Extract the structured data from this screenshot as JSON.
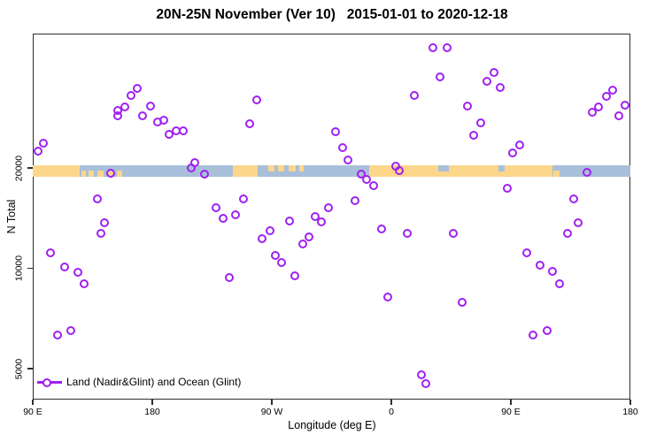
{
  "colors": {
    "point_purple": "#a020f0",
    "land_tan": "#fbd68b",
    "ocean_blue": "#a9bfd9",
    "axis_black": "#2e2e2e"
  },
  "chart_data": {
    "type": "scatter",
    "title": "20N-25N November (Ver 10)   2015-01-01 to 2020-12-18",
    "xlabel": "Longitude (deg E)",
    "ylabel": "N Total",
    "legend_label": "Land (Nadir&Glint) and Ocean (Glint)",
    "legend_position": "bottom-left inside plot",
    "grid": false,
    "x_axis": {
      "note": "Axis spans 450 deg of longitude wrapping eastward: left edge 90E -> 180 -> 90W -> 0 -> 90E -> 180 at right edge. Point x values below are degrees east of the left edge (0..450).",
      "tick_degs": [
        0,
        90,
        180,
        270,
        360,
        450
      ],
      "tick_labels": [
        "90 E",
        "180",
        "90 W",
        "0",
        "90 E",
        "180"
      ]
    },
    "y_axis": {
      "scale": "log2",
      "tick_values": [
        5000,
        10000,
        20000
      ],
      "tick_labels": [
        "5000",
        "10000",
        "20000"
      ],
      "ylim_approx": [
        4200,
        50000
      ]
    },
    "map_band": {
      "note": "Horizontal world-map strip of the 20N-25N latitude zone drawn across the plot at N Total = 20000; tan = land, blue = ocean. Segments in axis degrees (0..450).",
      "at_value": 20000,
      "segments": [
        {
          "from": 0,
          "to": 35.3,
          "type": "land",
          "part": "full"
        },
        {
          "from": 36.7,
          "to": 40,
          "type": "land",
          "part": "bottom"
        },
        {
          "from": 42,
          "to": 46,
          "type": "land",
          "part": "bottom"
        },
        {
          "from": 48.7,
          "to": 53.3,
          "type": "land",
          "part": "bottom"
        },
        {
          "from": 56.7,
          "to": 60.7,
          "type": "land",
          "part": "bottom"
        },
        {
          "from": 63.3,
          "to": 67.3,
          "type": "land",
          "part": "bottom"
        },
        {
          "from": 150.7,
          "to": 169.3,
          "type": "land",
          "part": "full"
        },
        {
          "from": 177.3,
          "to": 182,
          "type": "land",
          "part": "top"
        },
        {
          "from": 184.7,
          "to": 189.3,
          "type": "land",
          "part": "top"
        },
        {
          "from": 192.7,
          "to": 198,
          "type": "land",
          "part": "top"
        },
        {
          "from": 200.7,
          "to": 204,
          "type": "land",
          "part": "top"
        },
        {
          "from": 253.3,
          "to": 391.3,
          "type": "land",
          "part": "full"
        },
        {
          "from": 305.3,
          "to": 313.3,
          "type": "ocean",
          "part": "top"
        },
        {
          "from": 350.7,
          "to": 355.3,
          "type": "ocean",
          "part": "top"
        },
        {
          "from": 392,
          "to": 396.7,
          "type": "land",
          "part": "bottom"
        }
      ]
    },
    "points_format": [
      "x_deg_along_axis",
      "n_total"
    ],
    "points": [
      [
        4,
        22400
      ],
      [
        8,
        23700
      ],
      [
        78.7,
        34700
      ],
      [
        74,
        33000
      ],
      [
        69.3,
        30500
      ],
      [
        64,
        29700
      ],
      [
        64,
        28700
      ],
      [
        88.7,
        30700
      ],
      [
        82.7,
        28700
      ],
      [
        94,
        27500
      ],
      [
        98.7,
        27800
      ],
      [
        102.7,
        25200
      ],
      [
        108,
        25900
      ],
      [
        113.3,
        25800
      ],
      [
        119.3,
        20000
      ],
      [
        122,
        20700
      ],
      [
        129.3,
        19200
      ],
      [
        58.7,
        19300
      ],
      [
        168.7,
        32000
      ],
      [
        163.3,
        27100
      ],
      [
        228,
        25700
      ],
      [
        233.3,
        23000
      ],
      [
        237.3,
        21100
      ],
      [
        247.3,
        19200
      ],
      [
        251.3,
        18500
      ],
      [
        256.7,
        17700
      ],
      [
        273.3,
        20200
      ],
      [
        276,
        19600
      ],
      [
        287.3,
        33000
      ],
      [
        301.3,
        45900
      ],
      [
        312,
        45900
      ],
      [
        306.7,
        37500
      ],
      [
        347.3,
        38700
      ],
      [
        342,
        36400
      ],
      [
        352,
        34900
      ],
      [
        327.3,
        30700
      ],
      [
        337.3,
        27300
      ],
      [
        332,
        25100
      ],
      [
        366.7,
        23400
      ],
      [
        361.3,
        22200
      ],
      [
        436.7,
        34200
      ],
      [
        432,
        32800
      ],
      [
        426,
        30500
      ],
      [
        421.3,
        29400
      ],
      [
        446,
        30900
      ],
      [
        441.3,
        28700
      ],
      [
        417.3,
        19400
      ],
      [
        357.3,
        17400
      ],
      [
        48.7,
        16200
      ],
      [
        54,
        13700
      ],
      [
        51,
        12700
      ],
      [
        13.3,
        11100
      ],
      [
        24,
        10100
      ],
      [
        34,
        9700
      ],
      [
        38.7,
        9000
      ],
      [
        28.7,
        6500
      ],
      [
        18.7,
        6300
      ],
      [
        158.7,
        16200
      ],
      [
        138,
        15200
      ],
      [
        143.3,
        14100
      ],
      [
        152.7,
        14500
      ],
      [
        178.7,
        13000
      ],
      [
        172.7,
        12300
      ],
      [
        193.3,
        13900
      ],
      [
        212.7,
        14300
      ],
      [
        217.3,
        13800
      ],
      [
        222.7,
        15200
      ],
      [
        242.7,
        16000
      ],
      [
        208,
        12400
      ],
      [
        203.3,
        11800
      ],
      [
        182.7,
        10900
      ],
      [
        187.3,
        10400
      ],
      [
        197.3,
        9500
      ],
      [
        148,
        9400
      ],
      [
        262.7,
        13100
      ],
      [
        282,
        12700
      ],
      [
        267.3,
        8200
      ],
      [
        292.7,
        4800
      ],
      [
        296,
        4500
      ],
      [
        316.7,
        12700
      ],
      [
        407.3,
        16200
      ],
      [
        410.7,
        13700
      ],
      [
        402.7,
        12700
      ],
      [
        372,
        11100
      ],
      [
        382,
        10200
      ],
      [
        391.3,
        9800
      ],
      [
        396.7,
        9000
      ],
      [
        323.3,
        7900
      ],
      [
        387.3,
        6500
      ],
      [
        376.7,
        6300
      ]
    ]
  }
}
